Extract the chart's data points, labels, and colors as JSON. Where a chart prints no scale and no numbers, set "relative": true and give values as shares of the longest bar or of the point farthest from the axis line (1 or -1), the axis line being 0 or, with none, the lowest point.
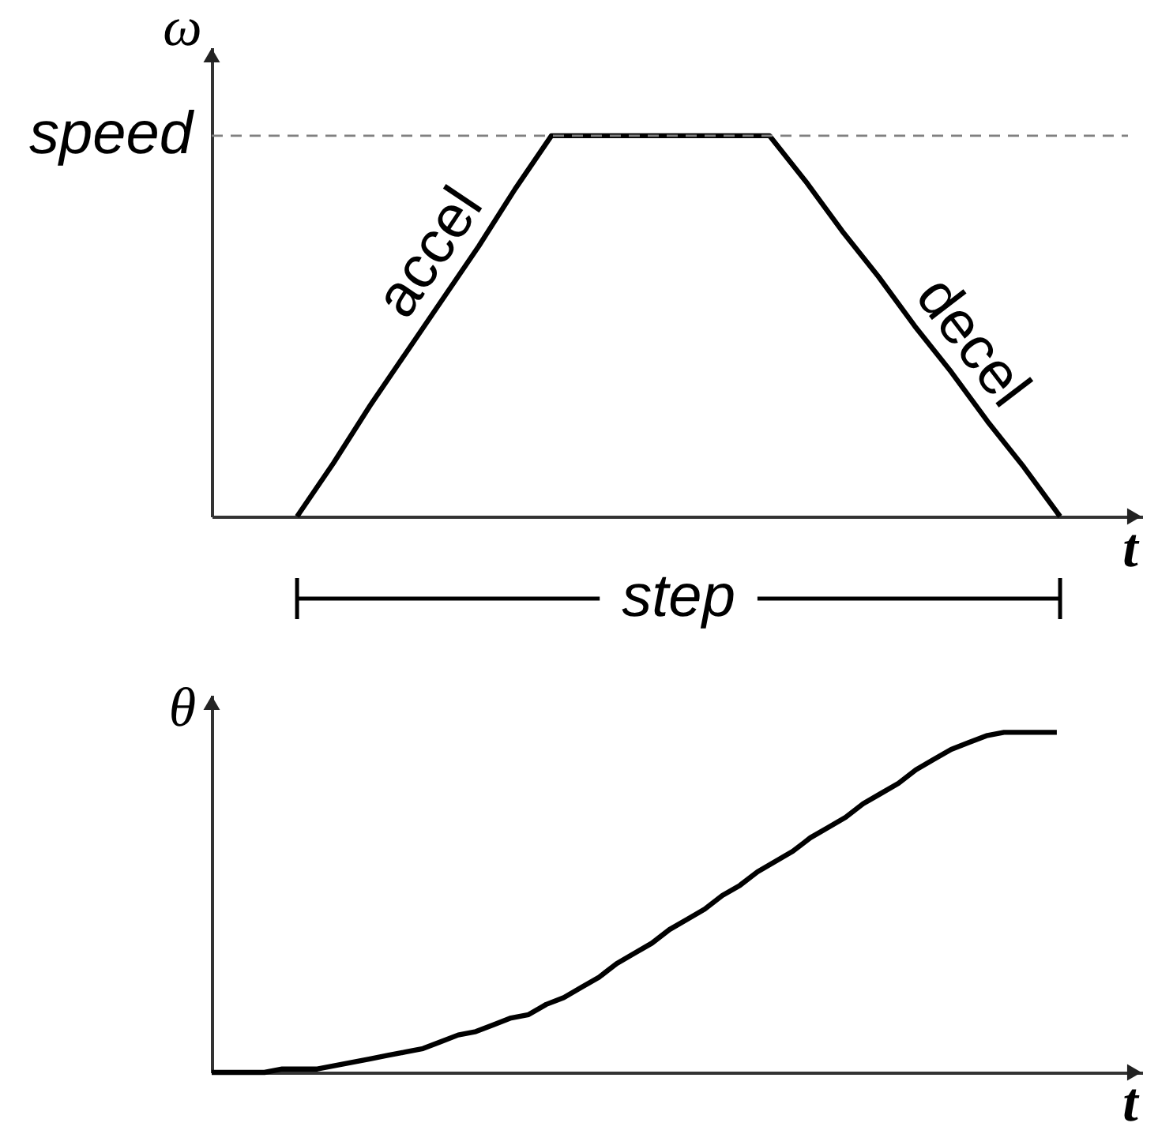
{
  "chart_data": [
    {
      "type": "line",
      "xlabel": "t",
      "ylabel": "ω",
      "relative": true,
      "categories": [
        null,
        null,
        null,
        null,
        null,
        null,
        null,
        null,
        null,
        null,
        null,
        null,
        null,
        null,
        null,
        null,
        null,
        null,
        null,
        null,
        null,
        null
      ],
      "series": [
        {
          "color": "#000000",
          "values": [
            0,
            0.14,
            0.29,
            0.43,
            0.57,
            0.71,
            0.86,
            1,
            1,
            1,
            1,
            1,
            1,
            1,
            0.88,
            0.75,
            0.63,
            0.5,
            0.38,
            0.25,
            0.13,
            0
          ]
        }
      ],
      "ref_lines": [
        {
          "axis": "y",
          "value": 1,
          "label": "speed",
          "line_style": "dashed",
          "color": "#808080"
        }
      ],
      "annotations": [
        "accel",
        "decel",
        "step"
      ]
    },
    {
      "type": "line",
      "xlabel": "t",
      "ylabel": "θ",
      "relative": true,
      "categories": [
        null,
        null,
        null,
        null,
        null,
        null,
        null,
        null,
        null,
        null,
        null,
        null,
        null,
        null,
        null,
        null,
        null,
        null,
        null,
        null,
        null,
        null,
        null,
        null,
        null,
        null,
        null,
        null,
        null,
        null,
        null,
        null,
        null,
        null,
        null,
        null,
        null,
        null,
        null,
        null,
        null,
        null,
        null,
        null,
        null,
        null,
        null,
        null,
        null
      ],
      "series": [
        {
          "color": "#000000",
          "values": [
            0,
            0,
            0,
            0,
            0.01,
            0.01,
            0.01,
            0.02,
            0.03,
            0.04,
            0.05,
            0.06,
            0.07,
            0.09,
            0.11,
            0.12,
            0.14,
            0.16,
            0.17,
            0.2,
            0.22,
            0.25,
            0.28,
            0.32,
            0.35,
            0.38,
            0.42,
            0.45,
            0.48,
            0.52,
            0.55,
            0.59,
            0.62,
            0.65,
            0.69,
            0.72,
            0.75,
            0.79,
            0.82,
            0.85,
            0.89,
            0.92,
            0.95,
            0.97,
            0.99,
            1,
            1,
            1,
            1
          ]
        }
      ]
    }
  ]
}
